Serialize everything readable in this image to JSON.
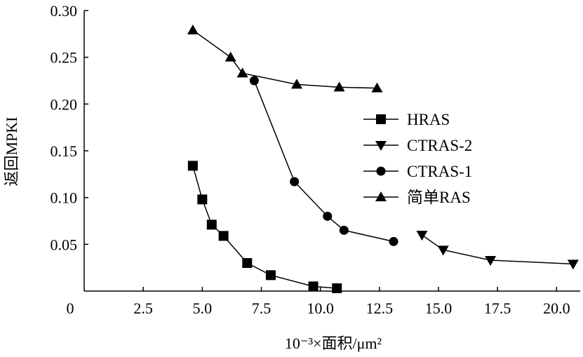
{
  "chart_data": {
    "type": "line",
    "xlabel": "10⁻³×面积/μm²",
    "ylabel": "返回MPKI",
    "xlim": [
      0,
      21
    ],
    "ylim": [
      0,
      0.3
    ],
    "x_ticks": [
      "0",
      "2.5",
      "5.0",
      "7.5",
      "10.0",
      "12.5",
      "15.0",
      "17.5",
      "20.0"
    ],
    "x_tick_values": [
      0,
      2.5,
      5.0,
      7.5,
      10.0,
      12.5,
      15.0,
      17.5,
      20.0
    ],
    "y_ticks": [
      "0.05",
      "0.10",
      "0.15",
      "0.20",
      "0.25",
      "0.30"
    ],
    "y_tick_values": [
      0.05,
      0.1,
      0.15,
      0.2,
      0.25,
      0.3
    ],
    "legend_position": "right",
    "series": [
      {
        "name": "HRAS",
        "marker": "square",
        "x": [
          4.6,
          5.0,
          5.4,
          5.9,
          6.9,
          7.9,
          9.7,
          10.7
        ],
        "y": [
          0.134,
          0.098,
          0.071,
          0.059,
          0.03,
          0.017,
          0.005,
          0.003
        ]
      },
      {
        "name": "CTRAS-2",
        "marker": "triangle-down",
        "x": [
          14.3,
          15.2,
          17.2,
          20.7
        ],
        "y": [
          0.06,
          0.044,
          0.033,
          0.029
        ]
      },
      {
        "name": "CTRAS-1",
        "marker": "circle",
        "x": [
          7.2,
          8.9,
          10.3,
          11.0,
          13.1
        ],
        "y": [
          0.225,
          0.117,
          0.08,
          0.065,
          0.053
        ]
      },
      {
        "name": "简单RAS",
        "marker": "triangle-up",
        "x": [
          4.6,
          6.2,
          6.7,
          9.0,
          10.8,
          12.4
        ],
        "y": [
          0.279,
          0.25,
          0.233,
          0.221,
          0.218,
          0.217
        ]
      }
    ]
  }
}
